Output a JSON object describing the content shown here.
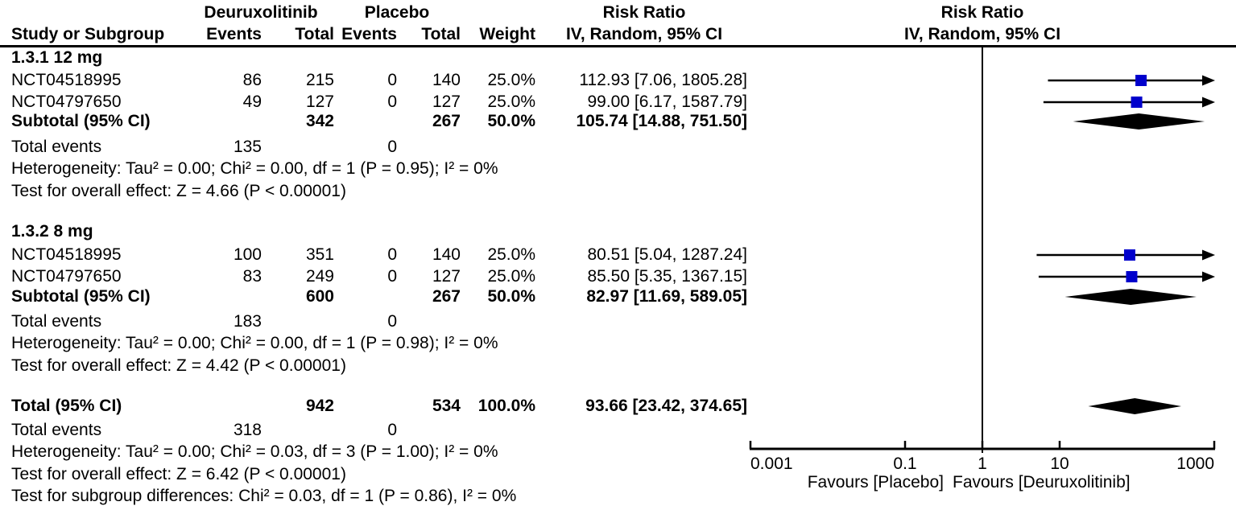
{
  "columns": {
    "study": "Study or Subgroup",
    "group1": "Deuruxolitinib",
    "group2": "Placebo",
    "events": "Events",
    "total": "Total",
    "weight": "Weight",
    "risk_ratio": "Risk Ratio",
    "ci_method": "IV, Random, 95% CI"
  },
  "axis": {
    "scale": "log",
    "min": 0.001,
    "max": 1000,
    "tick_values": [
      0.001,
      0.1,
      1,
      10,
      1000
    ],
    "tick_labels": [
      "0.001",
      "0.1",
      "1",
      "10",
      "1000"
    ],
    "favours_left": "Favours [Placebo]",
    "favours_right": "Favours [Deuruxolitinib]"
  },
  "colors": {
    "marker": "#0000cc",
    "diamond": "#000000",
    "line": "#000000",
    "text": "#000000",
    "background": "#ffffff"
  },
  "chart_data": {
    "type": "forest",
    "effect_measure": "Risk Ratio",
    "method": "IV, Random, 95% CI",
    "x_scale": "log",
    "x_range": [
      0.001,
      1000
    ],
    "x_ticks": [
      0.001,
      0.1,
      1,
      10,
      1000
    ],
    "groups": [
      {
        "label": "1.3.1 12 mg",
        "studies": [
          {
            "id": "NCT04518995",
            "events1": "86",
            "total1": "215",
            "events2": "0",
            "total2": "140",
            "weight": "25.0%",
            "ci_text": "112.93 [7.06, 1805.28]",
            "rr": 112.93,
            "lo": 7.06,
            "hi": 1805.28
          },
          {
            "id": "NCT04797650",
            "events1": "49",
            "total1": "127",
            "events2": "0",
            "total2": "127",
            "weight": "25.0%",
            "ci_text": "99.00 [6.17, 1587.79]",
            "rr": 99.0,
            "lo": 6.17,
            "hi": 1587.79
          }
        ],
        "subtotal": {
          "label": "Subtotal (95% CI)",
          "total1": "342",
          "total2": "267",
          "weight": "50.0%",
          "ci_text": "105.74 [14.88, 751.50]",
          "rr": 105.74,
          "lo": 14.88,
          "hi": 751.5
        },
        "total_events": {
          "label": "Total events",
          "events1": "135",
          "events2": "0"
        },
        "heterogeneity": "Heterogeneity: Tau² = 0.00; Chi² = 0.00, df = 1 (P = 0.95); I² = 0%",
        "overall_effect": "Test for overall effect: Z = 4.66 (P < 0.00001)"
      },
      {
        "label": "1.3.2 8 mg",
        "studies": [
          {
            "id": "NCT04518995",
            "events1": "100",
            "total1": "351",
            "events2": "0",
            "total2": "140",
            "weight": "25.0%",
            "ci_text": "80.51 [5.04, 1287.24]",
            "rr": 80.51,
            "lo": 5.04,
            "hi": 1287.24
          },
          {
            "id": "NCT04797650",
            "events1": "83",
            "total1": "249",
            "events2": "0",
            "total2": "127",
            "weight": "25.0%",
            "ci_text": "85.50 [5.35, 1367.15]",
            "rr": 85.5,
            "lo": 5.35,
            "hi": 1367.15
          }
        ],
        "subtotal": {
          "label": "Subtotal (95% CI)",
          "total1": "600",
          "total2": "267",
          "weight": "50.0%",
          "ci_text": "82.97 [11.69, 589.05]",
          "rr": 82.97,
          "lo": 11.69,
          "hi": 589.05
        },
        "total_events": {
          "label": "Total events",
          "events1": "183",
          "events2": "0"
        },
        "heterogeneity": "Heterogeneity: Tau² = 0.00; Chi² = 0.00, df = 1 (P = 0.98); I² = 0%",
        "overall_effect": "Test for overall effect: Z = 4.42 (P < 0.00001)"
      }
    ],
    "total": {
      "label": "Total (95% CI)",
      "total1": "942",
      "total2": "534",
      "weight": "100.0%",
      "ci_text": "93.66 [23.42, 374.65]",
      "rr": 93.66,
      "lo": 23.42,
      "hi": 374.65,
      "total_events": {
        "label": "Total events",
        "events1": "318",
        "events2": "0"
      },
      "heterogeneity": "Heterogeneity: Tau² = 0.00; Chi² = 0.03, df = 3 (P = 1.00); I² = 0%",
      "overall_effect": "Test for overall effect: Z = 6.42 (P < 0.00001)",
      "subgroup_diff": "Test for subgroup differences: Chi² = 0.03, df = 1 (P = 0.86), I² = 0%"
    }
  }
}
